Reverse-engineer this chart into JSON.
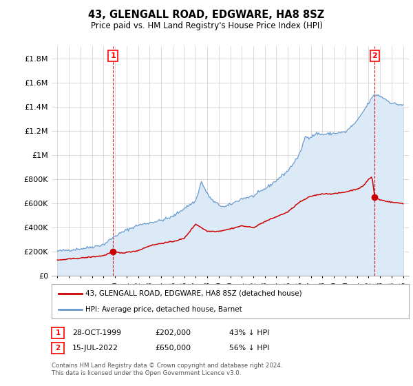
{
  "title": "43, GLENGALL ROAD, EDGWARE, HA8 8SZ",
  "subtitle": "Price paid vs. HM Land Registry's House Price Index (HPI)",
  "legend_line1": "43, GLENGALL ROAD, EDGWARE, HA8 8SZ (detached house)",
  "legend_line2": "HPI: Average price, detached house, Barnet",
  "footer": "Contains HM Land Registry data © Crown copyright and database right 2024.\nThis data is licensed under the Open Government Licence v3.0.",
  "annotation1": {
    "label": "1",
    "date": "28-OCT-1999",
    "price": "£202,000",
    "hpi_text": "43% ↓ HPI",
    "x_year": 1999.82,
    "y_val": 202000
  },
  "annotation2": {
    "label": "2",
    "date": "15-JUL-2022",
    "price": "£650,000",
    "hpi_text": "56% ↓ HPI",
    "x_year": 2022.54,
    "y_val": 650000
  },
  "sale_color": "#cc0000",
  "hpi_color": "#6699cc",
  "hpi_fill_color": "#dce9f7",
  "grid_color": "#cccccc",
  "bg_color": "#ffffff",
  "ylim": [
    0,
    1900000
  ],
  "xlim": [
    1994.5,
    2025.5
  ],
  "yticks": [
    0,
    200000,
    400000,
    600000,
    800000,
    1000000,
    1200000,
    1400000,
    1600000,
    1800000
  ],
  "ytick_labels": [
    "£0",
    "£200K",
    "£400K",
    "£600K",
    "£800K",
    "£1M",
    "£1.2M",
    "£1.4M",
    "£1.6M",
    "£1.8M"
  ]
}
